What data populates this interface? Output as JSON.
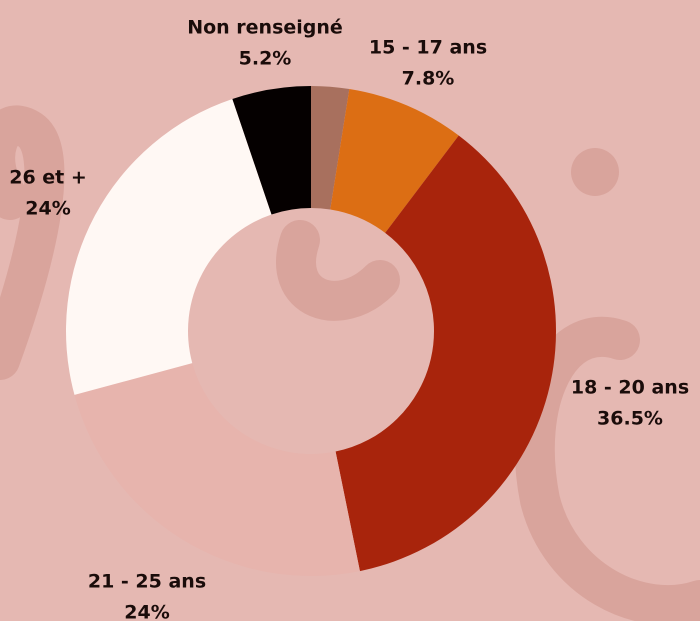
{
  "chart_data": {
    "type": "donut",
    "categories": [
      null,
      "15 - 17 ans",
      "18 - 20 ans",
      "21 - 25 ans",
      "26 et +",
      "Non renseigné"
    ],
    "values": [
      2.5,
      7.8,
      36.5,
      24,
      24,
      5.2
    ],
    "value_labels": [
      null,
      "7.8%",
      "36.5%",
      "24%",
      "24%",
      "5.2%"
    ],
    "colors": [
      "#a8705e",
      "#dc6e14",
      "#a8240c",
      "#e7b4ad",
      "#fff8f4",
      "#050000"
    ]
  }
}
